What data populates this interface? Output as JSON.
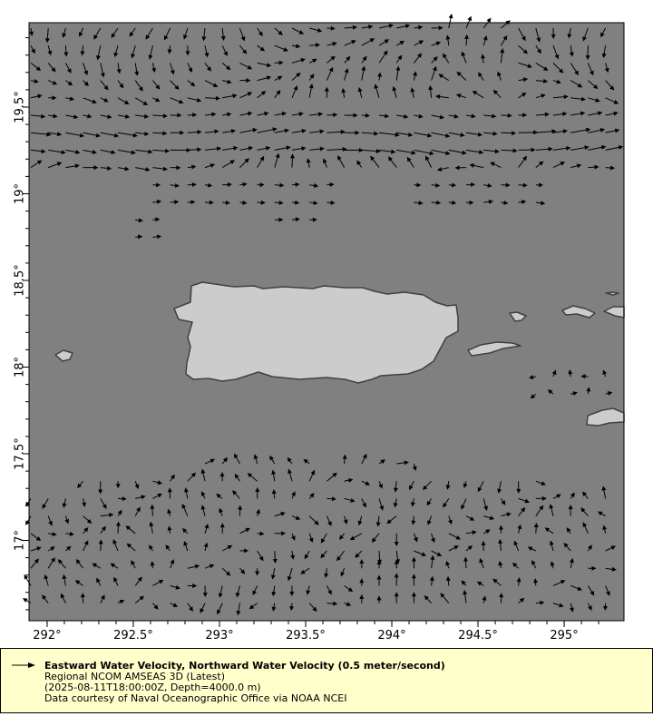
{
  "map": {
    "lon_range": [
      291.895,
      295.347
    ],
    "lat_range": [
      16.54,
      20.02
    ],
    "x_ticks": [
      {
        "value": 292,
        "label": "292°"
      },
      {
        "value": 292.5,
        "label": "292.5°"
      },
      {
        "value": 293,
        "label": "293°"
      },
      {
        "value": 293.5,
        "label": "293.5°"
      },
      {
        "value": 294,
        "label": "294°"
      },
      {
        "value": 294.5,
        "label": "294.5°"
      },
      {
        "value": 295,
        "label": "295°"
      }
    ],
    "y_ticks": [
      {
        "value": 19.5,
        "label": "19.5°"
      },
      {
        "value": 19,
        "label": "19°"
      },
      {
        "value": 18.5,
        "label": "18.5°"
      },
      {
        "value": 18,
        "label": "18°"
      },
      {
        "value": 17.5,
        "label": "17.5°"
      },
      {
        "value": 17,
        "label": "17°"
      }
    ],
    "colors": {
      "ocean": "#808080",
      "land": "#cccccc",
      "coast": "#404040",
      "vectors": "#000000",
      "legend_bg": "#ffffcc"
    }
  },
  "legend": {
    "title": "Eastward Water Velocity, Northward Water Velocity (0.5 meter/second)",
    "dataset": "Regional NCOM AMSEAS 3D (Latest)",
    "constraints": "(2025-08-11T18:00:00Z, Depth=4000.0 m)",
    "credit": "Data courtesy of Naval Oceanographic Office via NOAA NCEI"
  }
}
